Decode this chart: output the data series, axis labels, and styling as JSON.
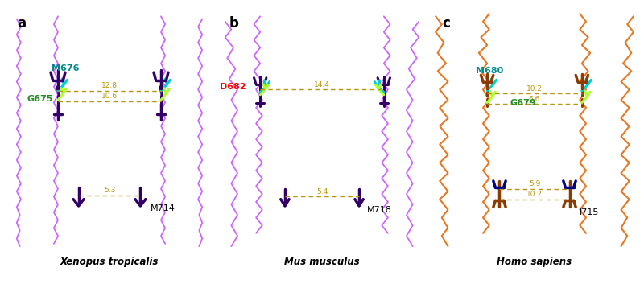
{
  "panel_labels": [
    "a",
    "b",
    "c"
  ],
  "species_labels": [
    "Xenopus tropicalis",
    "Mus musculus",
    "Homo sapiens"
  ],
  "panel_a": {
    "chain_color": "#CC66FF",
    "sidechain_color": "#330066",
    "filter_color_upper": "#00CED1",
    "filter_color_lower": "#ADFF2F",
    "label_upper": "M676",
    "label_lower": "G675",
    "label_gate": "M714",
    "dist_upper": "12.8",
    "dist_lower": "10.6",
    "dist_gate": "5.3",
    "dist_line_color": "#B8960C",
    "label_color_upper": "#008B8B",
    "label_color_lower": "#228B22",
    "label_color_gate": "#000000"
  },
  "panel_b": {
    "chain_color": "#CC66FF",
    "sidechain_color": "#330066",
    "filter_color_upper": "#00CED1",
    "filter_color_lower": "#ADFF2F",
    "label_upper": "D682",
    "label_gate": "M718",
    "dist_upper": "14.4",
    "dist_gate": "5.4",
    "dist_line_color": "#B8960C",
    "label_color_upper": "#FF0000",
    "label_color_gate": "#000000"
  },
  "panel_c": {
    "chain_color": "#E87722",
    "sidechain_color": "#8B3A00",
    "filter_color_upper": "#00CED1",
    "filter_color_lower": "#ADFF2F",
    "label_upper": "M680",
    "label_lower": "G679",
    "label_gate": "I715",
    "dist_upper": "10.2",
    "dist_lower": "6.6",
    "dist_gate_upper": "5.9",
    "dist_gate_lower": "10.2",
    "dist_line_color": "#B8960C",
    "label_color_upper": "#008B8B",
    "label_color_lower": "#228B22",
    "label_color_gate": "#000000",
    "gate_blue_color": "#00008B"
  },
  "bg_color": "#FFFFFF",
  "figsize": [
    8.0,
    3.53
  ],
  "dpi": 100
}
